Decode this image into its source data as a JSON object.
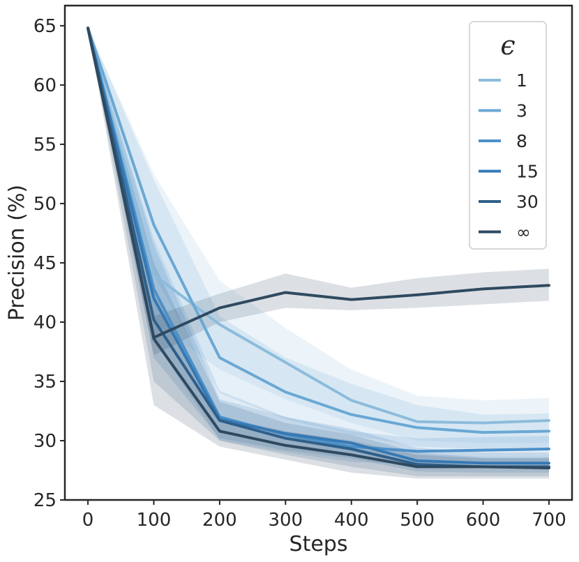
{
  "chart_data": {
    "type": "line",
    "xlabel": "Steps",
    "ylabel": "Precision (%)",
    "xlim": [
      -35,
      735
    ],
    "ylim": [
      25,
      66.7
    ],
    "xticks": [
      0,
      100,
      200,
      300,
      400,
      500,
      600,
      700
    ],
    "yticks": [
      25,
      30,
      35,
      40,
      45,
      50,
      55,
      60,
      65
    ],
    "grid": false,
    "legend": {
      "title": "ϵ",
      "placement": "top-right"
    },
    "x": [
      0,
      100,
      200,
      300,
      400,
      500,
      600,
      700
    ],
    "series": [
      {
        "name": "1",
        "color": "#8cbcdc",
        "values": [
          64.8,
          44.0,
          39.8,
          36.6,
          33.4,
          31.6,
          31.5,
          31.7
        ],
        "lower": [
          64.8,
          40.0,
          36.0,
          33.5,
          31.5,
          30.0,
          29.8,
          29.8
        ],
        "upper": [
          64.8,
          52.5,
          43.5,
          39.5,
          36.0,
          33.8,
          33.4,
          33.6
        ]
      },
      {
        "name": "3",
        "color": "#6aa8d4",
        "values": [
          64.8,
          48.2,
          37.0,
          34.1,
          32.2,
          31.1,
          30.7,
          30.8
        ],
        "lower": [
          64.8,
          44.0,
          34.0,
          31.8,
          30.5,
          29.5,
          29.3,
          29.4
        ],
        "upper": [
          64.8,
          52.0,
          40.5,
          37.0,
          34.8,
          33.0,
          32.2,
          32.3
        ]
      },
      {
        "name": "8",
        "color": "#4d90c8",
        "values": [
          64.8,
          42.8,
          32.0,
          30.5,
          29.5,
          29.1,
          29.2,
          29.3
        ],
        "lower": [
          64.8,
          38.5,
          30.0,
          29.0,
          28.2,
          28.0,
          28.1,
          28.1
        ],
        "upper": [
          64.8,
          47.0,
          34.2,
          32.0,
          30.8,
          30.2,
          30.3,
          30.4
        ]
      },
      {
        "name": "15",
        "color": "#3579b4",
        "values": [
          64.8,
          42.0,
          31.8,
          30.6,
          29.8,
          28.3,
          28.1,
          28.1
        ],
        "lower": [
          64.8,
          37.0,
          30.2,
          29.2,
          28.5,
          27.4,
          27.3,
          27.3
        ],
        "upper": [
          64.8,
          46.5,
          33.5,
          32.0,
          31.0,
          29.4,
          29.0,
          29.0
        ]
      },
      {
        "name": "30",
        "color": "#2e5f8a",
        "values": [
          64.8,
          40.2,
          31.7,
          30.2,
          29.3,
          28.0,
          27.8,
          27.8
        ],
        "lower": [
          64.8,
          35.0,
          30.0,
          28.8,
          27.8,
          27.0,
          27.0,
          27.0
        ],
        "upper": [
          64.8,
          45.0,
          33.3,
          31.5,
          30.5,
          29.0,
          28.6,
          28.6
        ]
      },
      {
        "name": "∞",
        "color": "#2f4a60",
        "values": [
          64.8,
          38.6,
          30.8,
          29.6,
          28.8,
          27.8,
          27.8,
          27.7
        ],
        "lower": [
          64.8,
          33.0,
          29.5,
          28.4,
          27.3,
          26.8,
          26.8,
          26.8
        ],
        "upper": [
          64.8,
          42.5,
          32.0,
          30.8,
          30.0,
          28.8,
          28.5,
          28.5
        ]
      },
      {
        "name": "",
        "color": "#2f4a60",
        "values": [
          64.8,
          38.7,
          41.2,
          42.5,
          41.9,
          42.3,
          42.8,
          43.1
        ],
        "lower": [
          64.8,
          37.2,
          40.0,
          41.2,
          41.0,
          41.2,
          41.5,
          41.8
        ],
        "upper": [
          64.8,
          40.5,
          42.4,
          44.1,
          42.9,
          43.7,
          44.2,
          44.5
        ]
      }
    ]
  }
}
